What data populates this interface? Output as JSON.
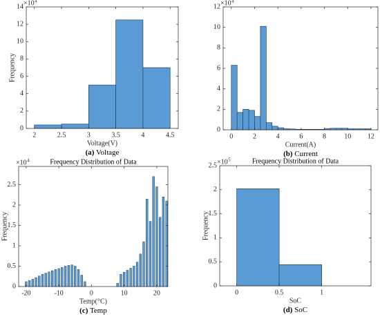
{
  "chart_data": [
    {
      "type": "histogram",
      "caption_label": "(a)",
      "caption": "Voltage",
      "x_label": "Voltage(V)",
      "y_label": "Frequency",
      "y_scale_base": "×10",
      "y_scale_exp": "4",
      "color": "#5b9bd5",
      "bins": [
        2,
        2.5,
        3,
        3.5,
        4,
        4.5
      ],
      "values": [
        0.4,
        0.5,
        5.0,
        12.5,
        7.0
      ],
      "xlim": [
        1.85,
        4.65
      ],
      "xticks": [
        2,
        2.5,
        3,
        3.5,
        4,
        4.5
      ],
      "ylim": [
        0,
        14
      ],
      "yticks": [
        0,
        2,
        4,
        6,
        8,
        10,
        12,
        14
      ]
    },
    {
      "type": "histogram",
      "caption_label": "(b)",
      "caption": "Current",
      "x_label": "Current(A)",
      "y_scale_base": "×10",
      "y_scale_exp": "4",
      "color": "#5b9bd5",
      "bins": [
        0,
        0.5,
        1,
        1.5,
        2,
        2.5,
        3,
        3.5,
        4,
        4.5,
        5,
        5.5,
        6,
        6.5,
        7,
        7.5,
        8,
        8.5,
        9,
        9.5,
        10,
        10.5,
        11,
        11.5,
        12
      ],
      "values": [
        6.3,
        1.7,
        2.0,
        1.9,
        1.3,
        10.1,
        0.7,
        0.35,
        0.2,
        0.1,
        0.08,
        0.05,
        0.05,
        0.05,
        0.05,
        0.05,
        0.12,
        0.15,
        0.15,
        0.15,
        0.1,
        0.1,
        0.1,
        0.1
      ],
      "xlim": [
        -0.7,
        12.6
      ],
      "xticks": [
        0,
        2,
        4,
        6,
        8,
        10,
        12
      ],
      "ylim": [
        0,
        12
      ],
      "yticks": [
        0,
        2,
        4,
        6,
        8,
        10,
        12
      ]
    },
    {
      "type": "bar",
      "caption_label": "(c)",
      "caption": "Temp",
      "title": "Frequency Distribution of Data",
      "x_label": "Temp(°C)",
      "y_label": "Frequency",
      "y_scale_base": "×10",
      "y_scale_exp": "4",
      "color": "#5b9bd5",
      "x": [
        -20,
        -19,
        -18,
        -17,
        -16,
        -15,
        -14,
        -13,
        -12,
        -11,
        -10,
        -9,
        -8,
        -7,
        -6,
        -5,
        -4,
        -3,
        -2,
        8,
        9,
        10,
        11,
        12,
        13,
        14,
        15,
        16,
        17,
        18,
        19,
        20,
        21,
        22,
        23
      ],
      "values": [
        0.12,
        0.15,
        0.18,
        0.22,
        0.26,
        0.3,
        0.33,
        0.36,
        0.39,
        0.42,
        0.44,
        0.47,
        0.5,
        0.52,
        0.53,
        0.5,
        0.42,
        0.28,
        0.12,
        0.08,
        0.3,
        0.35,
        0.4,
        0.45,
        0.5,
        0.6,
        0.8,
        1.1,
        2.15,
        1.6,
        2.7,
        2.45,
        1.7,
        2.2,
        2.1
      ],
      "xlim": [
        -22.3,
        23.4
      ],
      "xticks": [
        -20,
        -10,
        0,
        10,
        20
      ],
      "ylim": [
        0,
        2.95
      ],
      "yticks": [
        0,
        0.5,
        1,
        1.5,
        2,
        2.5
      ]
    },
    {
      "type": "histogram",
      "caption_label": "(d)",
      "caption": "SoC",
      "title": "Frequency Distribution of Data",
      "x_label": "SoC",
      "y_label": "Frequency",
      "y_scale_base": "×10",
      "y_scale_exp": "5",
      "color": "#5b9bd5",
      "bins": [
        0,
        0.5,
        1
      ],
      "values": [
        2.02,
        0.44
      ],
      "xlim": [
        -0.2,
        1.58
      ],
      "xticks": [
        0,
        0.5,
        1
      ],
      "ylim": [
        0,
        2.5
      ],
      "yticks": [
        0,
        0.5,
        1,
        1.5,
        2,
        2.5
      ]
    }
  ]
}
